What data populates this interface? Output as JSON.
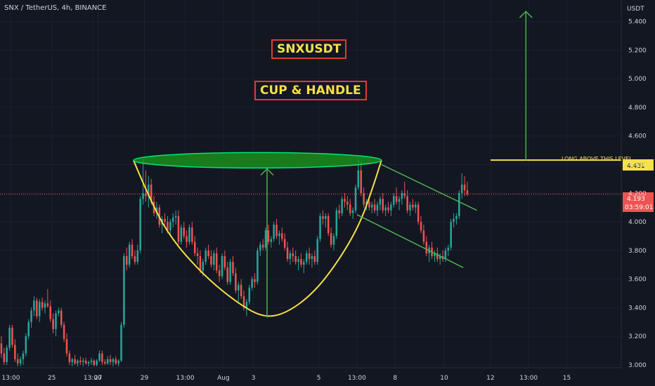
{
  "header": {
    "symbol_line": "SNX / TetherUS, 4h, BINANCE"
  },
  "titles": {
    "ticker": "SNXUSDT",
    "pattern": "CUP & HANDLE"
  },
  "annotations": {
    "level_label": "LONG ABOVE THIS LEVEL"
  },
  "price_axis": {
    "unit": "USDT",
    "level_value": "4.431",
    "current_price": "4.193",
    "countdown": "03:59:01"
  },
  "colors": {
    "background": "#131722",
    "up_candle": "#26a69a",
    "down_candle": "#ef5350",
    "cup_line": "#f7e048",
    "rim_fill": "#1b9e1b",
    "green_lines": "#4caf50",
    "level_line": "#f7e048",
    "title_border": "#e53935",
    "title_text": "#f7e048"
  },
  "chart_data": {
    "type": "candlestick",
    "y_ticks": [
      3.0,
      3.2,
      3.4,
      3.6,
      3.8,
      4.0,
      4.2,
      4.4,
      4.6,
      4.8,
      5.0,
      5.2,
      5.4
    ],
    "y_tick_labels": [
      "3.000",
      "3.200",
      "3.400",
      "3.600",
      "3.800",
      "4.000",
      "4.200",
      "4.400",
      "4.600",
      "4.800",
      "5.000",
      "5.200",
      "5.400"
    ],
    "ylim": [
      2.98,
      5.55
    ],
    "x_tick_labels": [
      "13:00",
      "25",
      "13:00",
      "27",
      "29",
      "13:00",
      "Aug",
      "3",
      "5",
      "13:00",
      "8",
      "10",
      "12",
      "13:00",
      "15"
    ],
    "x_tick_index": [
      4,
      19,
      34,
      36,
      53,
      68,
      82,
      93,
      117,
      131,
      145,
      163,
      180,
      194,
      208
    ],
    "xlim": [
      0,
      228
    ],
    "resistance_level": 4.431,
    "last_price": 4.193,
    "cup_points": [
      [
        49,
        4.43
      ],
      [
        54,
        4.2
      ],
      [
        62,
        3.9
      ],
      [
        75,
        3.62
      ],
      [
        88,
        3.42
      ],
      [
        97,
        3.33
      ],
      [
        105,
        3.36
      ],
      [
        115,
        3.5
      ],
      [
        124,
        3.72
      ],
      [
        132,
        3.98
      ],
      [
        137,
        4.25
      ],
      [
        140,
        4.43
      ]
    ],
    "rim": {
      "x_from": 49,
      "x_to": 140,
      "y": 4.43
    },
    "handle_channel": {
      "upper": [
        [
          140,
          4.4
        ],
        [
          175,
          4.08
        ]
      ],
      "lower": [
        [
          131,
          4.05
        ],
        [
          170,
          3.68
        ]
      ]
    },
    "target_arrow_cup": {
      "x": 98,
      "y_from": 3.33,
      "y_to": 4.37
    },
    "target_arrow_breakout": {
      "x": 193,
      "y_from": 4.43,
      "y_to": 5.47
    },
    "candles": [
      [
        3.15,
        3.2,
        3.05,
        3.08
      ],
      [
        3.08,
        3.12,
        3.0,
        3.02
      ],
      [
        3.02,
        3.14,
        3.0,
        3.12
      ],
      [
        3.12,
        3.28,
        3.1,
        3.26
      ],
      [
        3.26,
        3.28,
        3.12,
        3.14
      ],
      [
        3.14,
        3.18,
        3.02,
        3.04
      ],
      [
        3.04,
        3.08,
        2.99,
        3.01
      ],
      [
        3.01,
        3.06,
        2.99,
        3.04
      ],
      [
        3.04,
        3.1,
        3.0,
        3.08
      ],
      [
        3.08,
        3.22,
        3.06,
        3.2
      ],
      [
        3.2,
        3.32,
        3.18,
        3.3
      ],
      [
        3.3,
        3.4,
        3.26,
        3.38
      ],
      [
        3.38,
        3.48,
        3.34,
        3.45
      ],
      [
        3.45,
        3.47,
        3.32,
        3.34
      ],
      [
        3.34,
        3.46,
        3.3,
        3.44
      ],
      [
        3.44,
        3.47,
        3.38,
        3.4
      ],
      [
        3.4,
        3.45,
        3.36,
        3.43
      ],
      [
        3.43,
        3.53,
        3.4,
        3.41
      ],
      [
        3.41,
        3.45,
        3.3,
        3.32
      ],
      [
        3.32,
        3.36,
        3.22,
        3.25
      ],
      [
        3.25,
        3.38,
        3.2,
        3.36
      ],
      [
        3.36,
        3.4,
        3.34,
        3.38
      ],
      [
        3.38,
        3.4,
        3.26,
        3.28
      ],
      [
        3.28,
        3.3,
        3.16,
        3.18
      ],
      [
        3.18,
        3.22,
        3.06,
        3.08
      ],
      [
        3.08,
        3.1,
        3.0,
        3.02
      ],
      [
        3.02,
        3.05,
        2.99,
        3.04
      ],
      [
        3.04,
        3.07,
        3.0,
        3.01
      ],
      [
        3.01,
        3.04,
        2.99,
        3.03
      ],
      [
        3.03,
        3.06,
        3.0,
        3.02
      ],
      [
        3.02,
        3.05,
        2.99,
        3.03
      ],
      [
        3.03,
        3.05,
        3.0,
        3.01
      ],
      [
        3.01,
        3.03,
        2.99,
        3.02
      ],
      [
        3.02,
        3.05,
        3.0,
        3.03
      ],
      [
        3.03,
        3.04,
        2.99,
        3.0
      ],
      [
        3.0,
        3.04,
        2.99,
        3.03
      ],
      [
        3.03,
        3.1,
        3.02,
        3.08
      ],
      [
        3.08,
        3.1,
        3.0,
        3.02
      ],
      [
        3.02,
        3.04,
        3.0,
        3.01
      ],
      [
        3.01,
        3.06,
        3.0,
        3.04
      ],
      [
        3.04,
        3.07,
        3.0,
        3.02
      ],
      [
        3.02,
        3.05,
        2.99,
        3.04
      ],
      [
        3.04,
        3.06,
        3.0,
        3.01
      ],
      [
        3.01,
        3.04,
        2.99,
        3.03
      ],
      [
        3.03,
        3.3,
        3.02,
        3.28
      ],
      [
        3.28,
        3.78,
        3.26,
        3.76
      ],
      [
        3.76,
        3.82,
        3.66,
        3.7
      ],
      [
        3.7,
        3.86,
        3.68,
        3.84
      ],
      [
        3.84,
        3.88,
        3.74,
        3.76
      ],
      [
        3.76,
        3.8,
        3.7,
        3.72
      ],
      [
        3.72,
        3.84,
        3.7,
        3.8
      ],
      [
        3.8,
        4.18,
        3.78,
        4.16
      ],
      [
        4.16,
        4.44,
        4.12,
        4.2
      ],
      [
        4.2,
        4.36,
        4.14,
        4.18
      ],
      [
        4.18,
        4.32,
        4.1,
        4.26
      ],
      [
        4.26,
        4.3,
        4.12,
        4.14
      ],
      [
        4.14,
        4.18,
        4.04,
        4.06
      ],
      [
        4.06,
        4.14,
        4.02,
        4.1
      ],
      [
        4.1,
        4.12,
        3.96,
        3.98
      ],
      [
        3.98,
        4.04,
        3.92,
        4.02
      ],
      [
        4.02,
        4.06,
        3.96,
        4.0
      ],
      [
        4.0,
        4.04,
        3.92,
        3.94
      ],
      [
        3.94,
        4.02,
        3.9,
        4.0
      ],
      [
        4.0,
        4.06,
        3.96,
        4.03
      ],
      [
        4.03,
        4.08,
        3.98,
        4.04
      ],
      [
        4.04,
        4.08,
        3.84,
        3.86
      ],
      [
        3.86,
        3.98,
        3.84,
        3.96
      ],
      [
        3.96,
        4.0,
        3.88,
        3.9
      ],
      [
        3.9,
        3.94,
        3.82,
        3.86
      ],
      [
        3.86,
        3.98,
        3.84,
        3.96
      ],
      [
        3.96,
        4.0,
        3.84,
        3.86
      ],
      [
        3.86,
        3.9,
        3.76,
        3.78
      ],
      [
        3.78,
        3.82,
        3.7,
        3.76
      ],
      [
        3.76,
        3.8,
        3.64,
        3.66
      ],
      [
        3.66,
        3.74,
        3.62,
        3.72
      ],
      [
        3.72,
        3.82,
        3.7,
        3.8
      ],
      [
        3.8,
        3.84,
        3.74,
        3.76
      ],
      [
        3.76,
        3.8,
        3.68,
        3.7
      ],
      [
        3.7,
        3.8,
        3.66,
        3.78
      ],
      [
        3.78,
        3.82,
        3.64,
        3.66
      ],
      [
        3.66,
        3.7,
        3.58,
        3.62
      ],
      [
        3.62,
        3.78,
        3.6,
        3.76
      ],
      [
        3.76,
        3.8,
        3.66,
        3.68
      ],
      [
        3.68,
        3.72,
        3.56,
        3.58
      ],
      [
        3.58,
        3.74,
        3.56,
        3.72
      ],
      [
        3.72,
        3.76,
        3.62,
        3.64
      ],
      [
        3.64,
        3.68,
        3.5,
        3.52
      ],
      [
        3.52,
        3.58,
        3.44,
        3.56
      ],
      [
        3.56,
        3.6,
        3.46,
        3.48
      ],
      [
        3.48,
        3.52,
        3.38,
        3.4
      ],
      [
        3.4,
        3.46,
        3.34,
        3.44
      ],
      [
        3.44,
        3.56,
        3.42,
        3.54
      ],
      [
        3.54,
        3.62,
        3.52,
        3.6
      ],
      [
        3.6,
        3.64,
        3.54,
        3.58
      ],
      [
        3.58,
        3.82,
        3.56,
        3.8
      ],
      [
        3.8,
        3.86,
        3.76,
        3.84
      ],
      [
        3.84,
        3.88,
        3.8,
        3.82
      ],
      [
        3.82,
        3.96,
        3.8,
        3.94
      ],
      [
        3.94,
        3.98,
        3.84,
        3.86
      ],
      [
        3.86,
        3.9,
        3.82,
        3.88
      ],
      [
        3.88,
        4.0,
        3.86,
        3.98
      ],
      [
        3.98,
        4.02,
        3.88,
        3.9
      ],
      [
        3.9,
        3.94,
        3.84,
        3.92
      ],
      [
        3.92,
        3.96,
        3.86,
        3.88
      ],
      [
        3.88,
        3.92,
        3.8,
        3.82
      ],
      [
        3.82,
        3.86,
        3.72,
        3.74
      ],
      [
        3.74,
        3.8,
        3.7,
        3.78
      ],
      [
        3.78,
        3.82,
        3.72,
        3.76
      ],
      [
        3.76,
        3.8,
        3.7,
        3.72
      ],
      [
        3.72,
        3.76,
        3.66,
        3.74
      ],
      [
        3.74,
        3.78,
        3.68,
        3.7
      ],
      [
        3.7,
        3.74,
        3.64,
        3.72
      ],
      [
        3.72,
        3.8,
        3.7,
        3.78
      ],
      [
        3.78,
        3.82,
        3.7,
        3.74
      ],
      [
        3.74,
        3.78,
        3.68,
        3.76
      ],
      [
        3.76,
        3.8,
        3.7,
        3.72
      ],
      [
        3.72,
        3.9,
        3.7,
        3.88
      ],
      [
        3.88,
        4.06,
        3.86,
        4.04
      ],
      [
        4.04,
        4.08,
        3.98,
        4.02
      ],
      [
        4.02,
        4.06,
        3.96,
        4.04
      ],
      [
        4.04,
        4.06,
        3.9,
        3.92
      ],
      [
        3.92,
        3.96,
        3.82,
        3.84
      ],
      [
        3.84,
        3.92,
        3.8,
        3.9
      ],
      [
        3.9,
        4.1,
        3.88,
        4.08
      ],
      [
        4.08,
        4.12,
        4.02,
        4.06
      ],
      [
        4.06,
        4.18,
        4.04,
        4.16
      ],
      [
        4.16,
        4.2,
        4.1,
        4.14
      ],
      [
        4.14,
        4.18,
        4.08,
        4.12
      ],
      [
        4.12,
        4.16,
        4.04,
        4.06
      ],
      [
        4.06,
        4.1,
        4.02,
        4.08
      ],
      [
        4.08,
        4.26,
        4.06,
        4.24
      ],
      [
        4.24,
        4.44,
        4.22,
        4.36
      ],
      [
        4.36,
        4.42,
        4.18,
        4.2
      ],
      [
        4.2,
        4.24,
        4.1,
        4.12
      ],
      [
        4.12,
        4.16,
        4.08,
        4.14
      ],
      [
        4.14,
        4.18,
        4.08,
        4.1
      ],
      [
        4.1,
        4.14,
        4.06,
        4.12
      ],
      [
        4.12,
        4.16,
        4.06,
        4.08
      ],
      [
        4.08,
        4.14,
        4.04,
        4.12
      ],
      [
        4.12,
        4.18,
        4.08,
        4.16
      ],
      [
        4.16,
        4.2,
        4.06,
        4.08
      ],
      [
        4.08,
        4.12,
        4.04,
        4.1
      ],
      [
        4.1,
        4.14,
        4.06,
        4.08
      ],
      [
        4.08,
        4.14,
        4.04,
        4.12
      ],
      [
        4.12,
        4.2,
        4.1,
        4.18
      ],
      [
        4.18,
        4.24,
        4.12,
        4.14
      ],
      [
        4.14,
        4.18,
        4.08,
        4.16
      ],
      [
        4.16,
        4.22,
        4.12,
        4.2
      ],
      [
        4.2,
        4.28,
        4.16,
        4.18
      ],
      [
        4.18,
        4.22,
        4.06,
        4.08
      ],
      [
        4.08,
        4.14,
        4.04,
        4.12
      ],
      [
        4.12,
        4.16,
        4.08,
        4.1
      ],
      [
        4.1,
        4.14,
        4.06,
        4.12
      ],
      [
        4.12,
        4.14,
        3.98,
        4.0
      ],
      [
        4.0,
        4.04,
        3.92,
        3.94
      ],
      [
        3.94,
        3.98,
        3.84,
        3.86
      ],
      [
        3.86,
        3.9,
        3.76,
        3.78
      ],
      [
        3.78,
        3.84,
        3.72,
        3.82
      ],
      [
        3.82,
        3.86,
        3.74,
        3.76
      ],
      [
        3.76,
        3.8,
        3.72,
        3.78
      ],
      [
        3.78,
        3.82,
        3.72,
        3.74
      ],
      [
        3.74,
        3.78,
        3.7,
        3.76
      ],
      [
        3.76,
        3.8,
        3.72,
        3.74
      ],
      [
        3.74,
        3.82,
        3.72,
        3.8
      ],
      [
        3.8,
        3.84,
        3.76,
        3.82
      ],
      [
        3.82,
        4.02,
        3.8,
        4.0
      ],
      [
        4.0,
        4.06,
        3.96,
        4.02
      ],
      [
        4.02,
        4.06,
        3.98,
        4.04
      ],
      [
        4.04,
        4.22,
        4.02,
        4.2
      ],
      [
        4.2,
        4.34,
        4.16,
        4.26
      ],
      [
        4.26,
        4.32,
        4.18,
        4.22
      ],
      [
        4.22,
        4.28,
        4.18,
        4.193
      ]
    ]
  }
}
